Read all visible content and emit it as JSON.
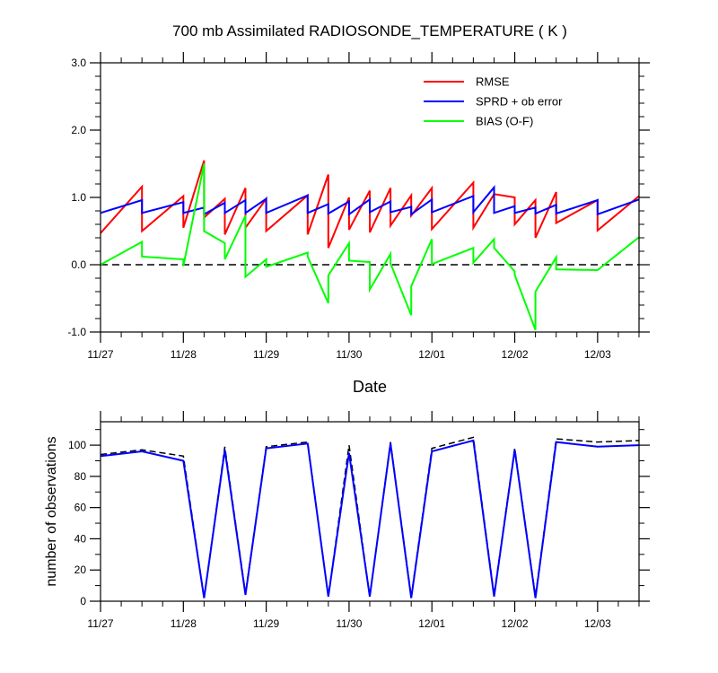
{
  "chart_data": [
    {
      "type": "line",
      "title": "700 mb Assimilated RADIOSONDE_TEMPERATURE ( K )",
      "xlabel": "Date",
      "ylabel": "",
      "xlim": [
        0,
        6.5
      ],
      "ylim": [
        -1.0,
        3.0
      ],
      "x_ticks": [
        0,
        1,
        2,
        3,
        4,
        5,
        6
      ],
      "x_tick_labels": [
        "11/27",
        "11/28",
        "11/29",
        "11/30",
        "12/01",
        "12/02",
        "12/03"
      ],
      "y_ticks": [
        -1.0,
        0.0,
        1.0,
        2.0,
        3.0
      ],
      "y_tick_labels": [
        "-1.0",
        "0.0",
        "1.0",
        "2.0",
        "3.0"
      ],
      "legend_position": "top-right",
      "reference_line": {
        "y": 0.0,
        "style": "dashed"
      },
      "series": [
        {
          "name": "RMSE",
          "color": "#ff0000",
          "points": [
            [
              0,
              0.47
            ],
            [
              0.5,
              1.16
            ],
            [
              0.5,
              0.5
            ],
            [
              1.0,
              1.02
            ],
            [
              1.0,
              0.55
            ],
            [
              1.25,
              1.55
            ],
            [
              1.25,
              0.7
            ],
            [
              1.5,
              0.98
            ],
            [
              1.5,
              0.45
            ],
            [
              1.75,
              1.14
            ],
            [
              1.75,
              0.55
            ],
            [
              2.0,
              0.98
            ],
            [
              2.0,
              0.5
            ],
            [
              2.5,
              1.03
            ],
            [
              2.5,
              0.45
            ],
            [
              2.75,
              1.34
            ],
            [
              2.75,
              0.25
            ],
            [
              3.0,
              1.0
            ],
            [
              3.0,
              0.52
            ],
            [
              3.25,
              1.1
            ],
            [
              3.25,
              0.48
            ],
            [
              3.5,
              1.14
            ],
            [
              3.5,
              0.58
            ],
            [
              3.75,
              1.03
            ],
            [
              3.75,
              0.73
            ],
            [
              4.0,
              1.14
            ],
            [
              4.0,
              0.53
            ],
            [
              4.5,
              1.22
            ],
            [
              4.5,
              0.55
            ],
            [
              4.75,
              1.05
            ],
            [
              5.0,
              1.0
            ],
            [
              5.0,
              0.6
            ],
            [
              5.25,
              0.96
            ],
            [
              5.25,
              0.4
            ],
            [
              5.5,
              1.08
            ],
            [
              5.5,
              0.62
            ],
            [
              6.0,
              0.96
            ],
            [
              6.0,
              0.51
            ],
            [
              6.5,
              1.02
            ]
          ]
        },
        {
          "name": "SPRD + ob error",
          "color": "#0000ff",
          "points": [
            [
              0,
              0.77
            ],
            [
              0.5,
              0.96
            ],
            [
              0.5,
              0.77
            ],
            [
              1.0,
              0.93
            ],
            [
              1.0,
              0.77
            ],
            [
              1.25,
              0.85
            ],
            [
              1.25,
              0.75
            ],
            [
              1.5,
              0.92
            ],
            [
              1.5,
              0.77
            ],
            [
              1.75,
              0.96
            ],
            [
              1.75,
              0.77
            ],
            [
              2.0,
              0.98
            ],
            [
              2.0,
              0.77
            ],
            [
              2.5,
              1.03
            ],
            [
              2.5,
              0.77
            ],
            [
              2.75,
              0.9
            ],
            [
              2.75,
              0.76
            ],
            [
              3.0,
              0.94
            ],
            [
              3.0,
              0.75
            ],
            [
              3.25,
              0.97
            ],
            [
              3.25,
              0.78
            ],
            [
              3.5,
              0.94
            ],
            [
              3.5,
              0.78
            ],
            [
              3.75,
              0.86
            ],
            [
              3.75,
              0.75
            ],
            [
              4.0,
              0.97
            ],
            [
              4.0,
              0.78
            ],
            [
              4.5,
              1.02
            ],
            [
              4.5,
              0.78
            ],
            [
              4.75,
              1.15
            ],
            [
              4.75,
              0.77
            ],
            [
              5.0,
              0.87
            ],
            [
              5.0,
              0.77
            ],
            [
              5.25,
              0.85
            ],
            [
              5.25,
              0.76
            ],
            [
              5.5,
              0.89
            ],
            [
              5.5,
              0.76
            ],
            [
              6.0,
              0.96
            ],
            [
              6.0,
              0.75
            ],
            [
              6.5,
              0.97
            ]
          ]
        },
        {
          "name": "BIAS (O-F)",
          "color": "#00ff00",
          "points": [
            [
              0,
              0.0
            ],
            [
              0.5,
              0.34
            ],
            [
              0.5,
              0.12
            ],
            [
              1.0,
              0.08
            ],
            [
              1.0,
              -0.02
            ],
            [
              1.25,
              1.5
            ],
            [
              1.25,
              0.5
            ],
            [
              1.5,
              0.32
            ],
            [
              1.5,
              0.08
            ],
            [
              1.75,
              0.73
            ],
            [
              1.75,
              -0.18
            ],
            [
              2.0,
              0.08
            ],
            [
              2.0,
              -0.03
            ],
            [
              2.5,
              0.18
            ],
            [
              2.5,
              0.12
            ],
            [
              2.75,
              -0.57
            ],
            [
              2.75,
              -0.16
            ],
            [
              3.0,
              0.32
            ],
            [
              3.0,
              0.06
            ],
            [
              3.25,
              0.04
            ],
            [
              3.25,
              -0.37
            ],
            [
              3.5,
              0.16
            ],
            [
              3.5,
              0.02
            ],
            [
              3.75,
              -0.75
            ],
            [
              3.75,
              -0.32
            ],
            [
              4.0,
              0.38
            ],
            [
              4.0,
              0.01
            ],
            [
              4.5,
              0.25
            ],
            [
              4.5,
              0.03
            ],
            [
              4.75,
              0.38
            ],
            [
              4.75,
              0.25
            ],
            [
              5.0,
              -0.1
            ],
            [
              5.0,
              -0.15
            ],
            [
              5.25,
              -0.97
            ],
            [
              5.25,
              -0.4
            ],
            [
              5.5,
              0.11
            ],
            [
              5.5,
              -0.07
            ],
            [
              6.0,
              -0.08
            ],
            [
              6.5,
              0.41
            ]
          ]
        }
      ]
    },
    {
      "type": "line",
      "title": "",
      "xlabel": "",
      "ylabel": "number of observations",
      "xlim": [
        0,
        6.5
      ],
      "ylim": [
        0,
        115
      ],
      "x_ticks": [
        0,
        1,
        2,
        3,
        4,
        5,
        6
      ],
      "x_tick_labels": [
        "11/27",
        "11/28",
        "11/29",
        "11/30",
        "12/01",
        "12/02",
        "12/03"
      ],
      "y_ticks": [
        0,
        20,
        40,
        60,
        80,
        100
      ],
      "y_tick_labels": [
        "0",
        "20",
        "40",
        "60",
        "80",
        "100"
      ],
      "series": [
        {
          "name": "",
          "color": "#000000",
          "style": "dashed",
          "points": [
            [
              0,
              94
            ],
            [
              0.5,
              97
            ],
            [
              1.0,
              93
            ],
            [
              1.25,
              2
            ],
            [
              1.5,
              99
            ],
            [
              1.75,
              5
            ],
            [
              2.0,
              99
            ],
            [
              2.5,
              102
            ],
            [
              2.75,
              3
            ],
            [
              3.0,
              100
            ],
            [
              3.25,
              3
            ],
            [
              3.5,
              102
            ],
            [
              3.75,
              3
            ],
            [
              4.0,
              98
            ],
            [
              4.5,
              105
            ],
            [
              4.75,
              4
            ],
            [
              5.0,
              98
            ],
            [
              5.25,
              3
            ],
            [
              5.5,
              104
            ],
            [
              6.0,
              102
            ],
            [
              6.5,
              103
            ]
          ]
        },
        {
          "name": "",
          "color": "#0000ff",
          "style": "solid",
          "points": [
            [
              0,
              93
            ],
            [
              0.5,
              96
            ],
            [
              1.0,
              90
            ],
            [
              1.25,
              2
            ],
            [
              1.5,
              97
            ],
            [
              1.75,
              4
            ],
            [
              2.0,
              98
            ],
            [
              2.5,
              101
            ],
            [
              2.75,
              3
            ],
            [
              3.0,
              95
            ],
            [
              3.25,
              3
            ],
            [
              3.5,
              101
            ],
            [
              3.75,
              2
            ],
            [
              4.0,
              96
            ],
            [
              4.5,
              103
            ],
            [
              4.75,
              3
            ],
            [
              5.0,
              97
            ],
            [
              5.25,
              2
            ],
            [
              5.5,
              102
            ],
            [
              6.0,
              99
            ],
            [
              6.5,
              100
            ]
          ]
        }
      ]
    }
  ]
}
